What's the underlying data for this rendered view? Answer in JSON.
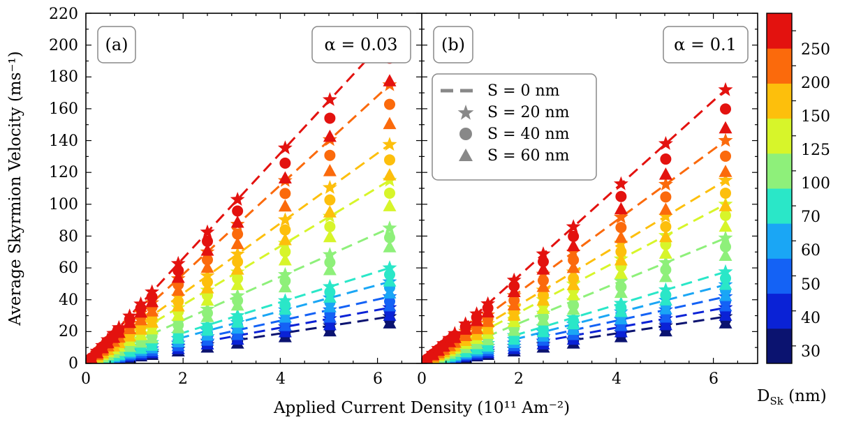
{
  "chart_data": {
    "type": "scatter",
    "xlabel": "Applied Current Density (10¹¹ Am⁻²)",
    "ylabel": "Average Skyrmion Velocity (ms⁻¹)",
    "xlim": [
      0,
      6.9
    ],
    "ylim": [
      0,
      220
    ],
    "x_ticks": [
      "0",
      "2",
      "4",
      "6"
    ],
    "y_ticks": [
      "0",
      "20",
      "40",
      "60",
      "80",
      "100",
      "120",
      "140",
      "160",
      "180",
      "200",
      "220"
    ],
    "grid": false,
    "legend_position": "upper-left of panel (b)",
    "legend": [
      {
        "marker": "dash",
        "label": "S = 0 nm"
      },
      {
        "marker": "star",
        "label": "S = 20 nm"
      },
      {
        "marker": "circle",
        "label": "S = 40 nm"
      },
      {
        "marker": "triangle",
        "label": "S = 60 nm"
      }
    ],
    "colorbar": {
      "label": "D",
      "label_sub": "Sk",
      "label_unit": " (nm)",
      "ticks": [
        "30",
        "40",
        "50",
        "60",
        "70",
        "100",
        "125",
        "150",
        "200",
        "250"
      ],
      "colors": [
        "#0b1370",
        "#0a22d6",
        "#1462f5",
        "#1aa6f5",
        "#2ae7c8",
        "#8ef07a",
        "#d7f52a",
        "#fdbf0c",
        "#fb6a0c",
        "#e3120f"
      ]
    },
    "current_density": [
      0.11,
      0.23,
      0.34,
      0.45,
      0.57,
      0.68,
      0.9,
      1.13,
      1.36,
      1.9,
      2.5,
      3.12,
      4.1,
      5.02,
      6.25
    ],
    "panels": [
      {
        "tag": "(a)",
        "alpha_label": "α = 0.03",
        "series": [
          {
            "diameter": "30",
            "slope": 4.7,
            "dash_range": [
              3.1,
              6.3
            ]
          },
          {
            "diameter": "40",
            "slope": 5.6,
            "dash_range": [
              2.4,
              6.3
            ]
          },
          {
            "diameter": "50",
            "slope": 6.7,
            "dash_range": [
              2.4,
              6.3
            ]
          },
          {
            "diameter": "60",
            "slope": 8.2,
            "dash_range": [
              1.9,
              6.3
            ]
          },
          {
            "diameter": "70",
            "slope": 9.6,
            "dash_range": [
              1.9,
              6.3
            ]
          },
          {
            "diameter": "100",
            "slope": 13.6,
            "dash_range": [
              1.0,
              6.3
            ]
          },
          {
            "diameter": "125",
            "slope": 18.4,
            "dash_range": [
              0.5,
              6.3
            ]
          },
          {
            "diameter": "150",
            "slope": 22.0,
            "dash_range": [
              0.3,
              6.3
            ]
          },
          {
            "diameter": "200",
            "slope": 28.0,
            "dash_range": [
              0.1,
              6.3
            ]
          },
          {
            "diameter": "250",
            "slope": 33.0,
            "dash_range": [
              0.0,
              6.3
            ]
          }
        ]
      },
      {
        "tag": "(b)",
        "alpha_label": "α = 0.1",
        "series": [
          {
            "diameter": "30",
            "slope": 4.7,
            "dash_range": [
              3.1,
              6.3
            ]
          },
          {
            "diameter": "40",
            "slope": 5.6,
            "dash_range": [
              2.4,
              6.3
            ]
          },
          {
            "diameter": "50",
            "slope": 6.7,
            "dash_range": [
              2.4,
              6.3
            ]
          },
          {
            "diameter": "60",
            "slope": 7.9,
            "dash_range": [
              1.9,
              6.3
            ]
          },
          {
            "diameter": "70",
            "slope": 9.2,
            "dash_range": [
              1.9,
              6.3
            ]
          },
          {
            "diameter": "100",
            "slope": 12.6,
            "dash_range": [
              1.0,
              6.3
            ]
          },
          {
            "diameter": "125",
            "slope": 16.0,
            "dash_range": [
              0.5,
              6.3
            ]
          },
          {
            "diameter": "150",
            "slope": 18.4,
            "dash_range": [
              0.3,
              6.3
            ]
          },
          {
            "diameter": "200",
            "slope": 22.4,
            "dash_range": [
              0.1,
              6.3
            ]
          },
          {
            "diameter": "250",
            "slope": 27.5,
            "dash_range": [
              0.0,
              6.3
            ]
          }
        ]
      }
    ]
  }
}
